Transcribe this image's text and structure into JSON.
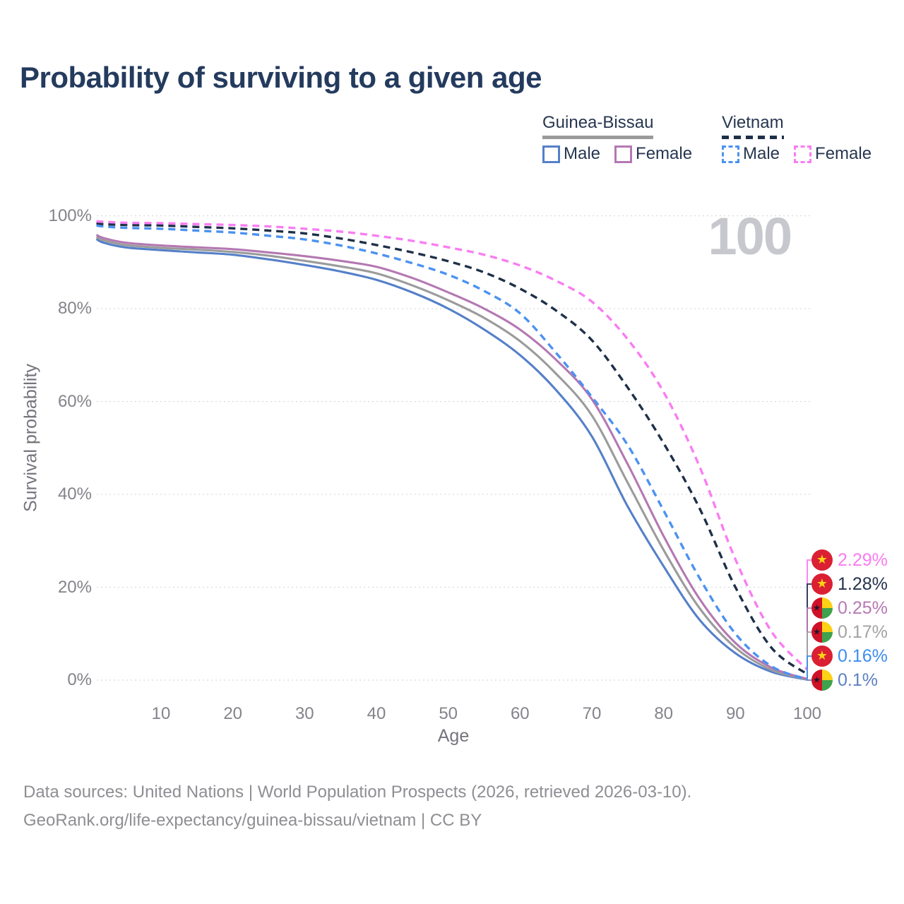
{
  "title": "Probability of surviving to a given age",
  "watermark_age": "100",
  "legend": {
    "groups": [
      {
        "country": "Guinea-Bissau",
        "line_style": "solid",
        "line_color": "#9b9b9b",
        "items": [
          {
            "label": "Male",
            "color": "#5580c8",
            "dashed": false
          },
          {
            "label": "Female",
            "color": "#b478b2",
            "dashed": false
          }
        ]
      },
      {
        "country": "Vietnam",
        "line_style": "dashed",
        "line_color": "#1e3048",
        "items": [
          {
            "label": "Male",
            "color": "#4b92f1",
            "dashed": true
          },
          {
            "label": "Female",
            "color": "#f97df2",
            "dashed": true
          }
        ]
      }
    ]
  },
  "chart_data": {
    "type": "line",
    "title": "Probability of surviving to a given age",
    "xlabel": "Age",
    "ylabel": "Survival probability",
    "xlim": [
      1,
      100
    ],
    "ylim": [
      0,
      100
    ],
    "x_ticks": [
      10,
      20,
      30,
      40,
      50,
      60,
      70,
      80,
      90,
      100
    ],
    "y_tick_labels": [
      "0%",
      "20%",
      "40%",
      "60%",
      "80%",
      "100%"
    ],
    "y_tick_values": [
      0,
      20,
      40,
      60,
      80,
      100
    ],
    "grid": "horizontal dotted lines, no axis lines",
    "legend_position": "top-right",
    "current_age_indicator": 100,
    "series": [
      {
        "name": "Guinea-Bissau Male",
        "country": "Guinea-Bissau",
        "sex": "Male",
        "color": "#5580c8",
        "dashed": false,
        "end_label": "0.1%",
        "points": [
          [
            1,
            95.0
          ],
          [
            2,
            94.2
          ],
          [
            5,
            93.2
          ],
          [
            10,
            92.6
          ],
          [
            15,
            92.1
          ],
          [
            20,
            91.6
          ],
          [
            25,
            90.6
          ],
          [
            30,
            89.4
          ],
          [
            35,
            88.0
          ],
          [
            40,
            86.2
          ],
          [
            45,
            83.5
          ],
          [
            50,
            80.0
          ],
          [
            55,
            75.5
          ],
          [
            60,
            70.0
          ],
          [
            65,
            62.5
          ],
          [
            70,
            52.5
          ],
          [
            75,
            37.4
          ],
          [
            80,
            24.5
          ],
          [
            85,
            13.0
          ],
          [
            90,
            5.8
          ],
          [
            95,
            1.8
          ],
          [
            100,
            0.1
          ]
        ]
      },
      {
        "name": "Guinea-Bissau",
        "country": "Guinea-Bissau",
        "sex": "Both",
        "color": "#9b9b9b",
        "dashed": false,
        "end_label": "0.17%",
        "points": [
          [
            1,
            95.4
          ],
          [
            2,
            94.7
          ],
          [
            5,
            93.7
          ],
          [
            10,
            93.1
          ],
          [
            15,
            92.7
          ],
          [
            20,
            92.2
          ],
          [
            25,
            91.4
          ],
          [
            30,
            90.3
          ],
          [
            35,
            89.1
          ],
          [
            40,
            87.6
          ],
          [
            45,
            85.0
          ],
          [
            50,
            81.8
          ],
          [
            55,
            78.0
          ],
          [
            60,
            73.0
          ],
          [
            65,
            66.0
          ],
          [
            70,
            57.0
          ],
          [
            75,
            42.5
          ],
          [
            80,
            28.0
          ],
          [
            85,
            15.5
          ],
          [
            90,
            7.0
          ],
          [
            95,
            2.2
          ],
          [
            100,
            0.17
          ]
        ]
      },
      {
        "name": "Guinea-Bissau Female",
        "country": "Guinea-Bissau",
        "sex": "Female",
        "color": "#b478b2",
        "dashed": false,
        "end_label": "0.25%",
        "points": [
          [
            1,
            95.9
          ],
          [
            2,
            95.2
          ],
          [
            5,
            94.2
          ],
          [
            10,
            93.6
          ],
          [
            15,
            93.2
          ],
          [
            20,
            92.8
          ],
          [
            25,
            92.1
          ],
          [
            30,
            91.3
          ],
          [
            35,
            90.3
          ],
          [
            40,
            89.0
          ],
          [
            45,
            86.6
          ],
          [
            50,
            83.5
          ],
          [
            55,
            80.0
          ],
          [
            60,
            75.5
          ],
          [
            65,
            69.0
          ],
          [
            70,
            60.5
          ],
          [
            75,
            46.5
          ],
          [
            80,
            31.0
          ],
          [
            85,
            17.5
          ],
          [
            90,
            8.0
          ],
          [
            95,
            2.7
          ],
          [
            100,
            0.25
          ]
        ]
      },
      {
        "name": "Vietnam Male",
        "country": "Vietnam",
        "sex": "Male",
        "color": "#4b92f1",
        "dashed": true,
        "end_label": "0.16%",
        "points": [
          [
            1,
            97.9
          ],
          [
            2,
            97.7
          ],
          [
            5,
            97.4
          ],
          [
            10,
            97.2
          ],
          [
            15,
            96.8
          ],
          [
            20,
            96.4
          ],
          [
            25,
            95.7
          ],
          [
            30,
            94.9
          ],
          [
            35,
            93.6
          ],
          [
            40,
            91.9
          ],
          [
            45,
            89.8
          ],
          [
            50,
            87.3
          ],
          [
            55,
            83.8
          ],
          [
            60,
            79.0
          ],
          [
            65,
            70.5
          ],
          [
            70,
            61.0
          ],
          [
            75,
            50.6
          ],
          [
            80,
            36.5
          ],
          [
            85,
            22.0
          ],
          [
            90,
            10.0
          ],
          [
            95,
            3.0
          ],
          [
            100,
            0.16
          ]
        ]
      },
      {
        "name": "Vietnam",
        "country": "Vietnam",
        "sex": "Both",
        "color": "#1e3048",
        "dashed": true,
        "end_label": "1.28%",
        "points": [
          [
            1,
            98.4
          ],
          [
            2,
            98.2
          ],
          [
            5,
            98.0
          ],
          [
            10,
            97.9
          ],
          [
            15,
            97.6
          ],
          [
            20,
            97.3
          ],
          [
            25,
            96.8
          ],
          [
            30,
            96.2
          ],
          [
            35,
            95.1
          ],
          [
            40,
            93.7
          ],
          [
            45,
            92.1
          ],
          [
            50,
            90.2
          ],
          [
            55,
            87.8
          ],
          [
            60,
            84.3
          ],
          [
            65,
            79.6
          ],
          [
            70,
            73.2
          ],
          [
            75,
            63.0
          ],
          [
            80,
            51.0
          ],
          [
            85,
            37.0
          ],
          [
            90,
            20.0
          ],
          [
            95,
            7.0
          ],
          [
            100,
            1.28
          ]
        ]
      },
      {
        "name": "Vietnam Female",
        "country": "Vietnam",
        "sex": "Female",
        "color": "#f97df2",
        "dashed": true,
        "end_label": "2.29%",
        "points": [
          [
            1,
            98.8
          ],
          [
            2,
            98.7
          ],
          [
            5,
            98.5
          ],
          [
            10,
            98.4
          ],
          [
            15,
            98.2
          ],
          [
            20,
            98.0
          ],
          [
            25,
            97.7
          ],
          [
            30,
            97.2
          ],
          [
            35,
            96.6
          ],
          [
            40,
            95.7
          ],
          [
            45,
            94.6
          ],
          [
            50,
            93.2
          ],
          [
            55,
            91.6
          ],
          [
            60,
            89.3
          ],
          [
            65,
            86.0
          ],
          [
            70,
            81.5
          ],
          [
            75,
            73.4
          ],
          [
            80,
            62.0
          ],
          [
            85,
            46.0
          ],
          [
            90,
            26.0
          ],
          [
            95,
            10.5
          ],
          [
            100,
            2.29
          ]
        ]
      }
    ]
  },
  "end_labels": [
    {
      "value": "2.29%",
      "color": "#fb7bf2",
      "flag": "vn",
      "series": "Vietnam Female"
    },
    {
      "value": "1.28%",
      "color": "#24334d",
      "flag": "vn",
      "series": "Vietnam"
    },
    {
      "value": "0.25%",
      "color": "#b878b4",
      "flag": "gw",
      "series": "Guinea-Bissau Female"
    },
    {
      "value": "0.17%",
      "color": "#a3a3a3",
      "flag": "gw",
      "series": "Guinea-Bissau"
    },
    {
      "value": "0.16%",
      "color": "#3e8ef1",
      "flag": "vn",
      "series": "Vietnam Male"
    },
    {
      "value": "0.1%",
      "color": "#5d80c1",
      "flag": "gw",
      "series": "Guinea-Bissau Male"
    }
  ],
  "icons": {
    "vn_flag": "vietnam-flag-icon (red circle, yellow star)",
    "gw_flag": "guinea-bissau-flag-icon (red/yellow/green circle, black star)"
  },
  "source": {
    "line1": "Data sources: United Nations | World Population Prospects (2026, retrieved 2026-03-10).",
    "line2": "GeoRank.org/life-expectancy/guinea-bissau/vietnam | CC BY"
  }
}
